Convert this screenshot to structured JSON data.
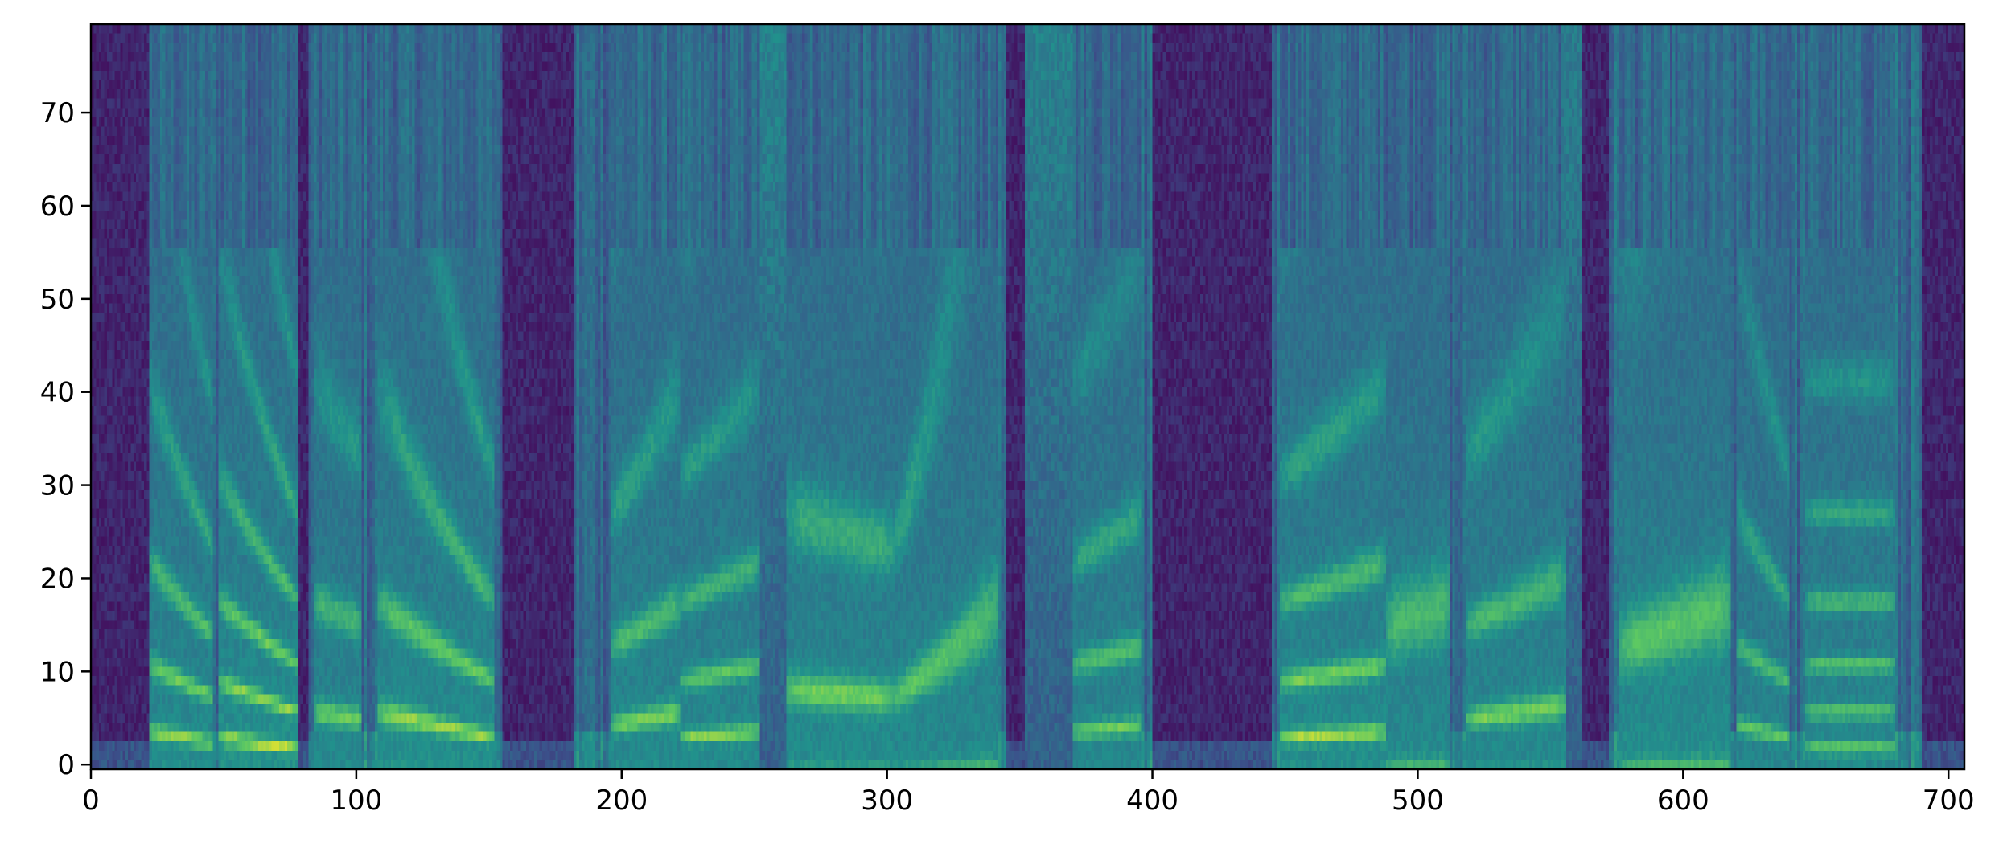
{
  "chart_data": {
    "type": "heatmap",
    "title": "",
    "xlabel": "",
    "ylabel": "",
    "xlim": [
      0,
      706
    ],
    "ylim": [
      0,
      80
    ],
    "x_ticks": [
      0,
      100,
      200,
      300,
      400,
      500,
      600,
      700
    ],
    "y_ticks": [
      0,
      10,
      20,
      30,
      40,
      50,
      60,
      70
    ],
    "x_tick_labels": [
      "0",
      "100",
      "200",
      "300",
      "400",
      "500",
      "600",
      "700"
    ],
    "y_tick_labels": [
      "0",
      "10",
      "20",
      "30",
      "40",
      "50",
      "60",
      "70"
    ],
    "colormap": "viridis",
    "colormap_stops": [
      "#440154",
      "#3b528b",
      "#21918c",
      "#5ec962",
      "#fde725"
    ],
    "grid": false,
    "silence_regions": [
      [
        0,
        22
      ],
      [
        78,
        82
      ],
      [
        155,
        182
      ],
      [
        345,
        352
      ],
      [
        400,
        445
      ],
      [
        562,
        572
      ],
      [
        690,
        706
      ]
    ],
    "voiced_segments": [
      {
        "start": 22,
        "end": 46,
        "f0_bin_start": 4.5,
        "f0_bin_end": 3.5,
        "energy": 0.9
      },
      {
        "start": 48,
        "end": 78,
        "f0_bin_start": 4.0,
        "f0_bin_end": 3.0,
        "energy": 1.0
      },
      {
        "start": 84,
        "end": 102,
        "f0_bin_start": 6.0,
        "f0_bin_end": 5.5,
        "energy": 0.8
      },
      {
        "start": 108,
        "end": 152,
        "f0_bin_start": 6.0,
        "f0_bin_end": 4.0,
        "energy": 0.95
      },
      {
        "start": 196,
        "end": 222,
        "f0_bin_start": 5.0,
        "f0_bin_end": 6.0,
        "energy": 0.85
      },
      {
        "start": 222,
        "end": 252,
        "f0_bin_start": 4.0,
        "f0_bin_end": 4.5,
        "energy": 0.85
      },
      {
        "start": 262,
        "end": 302,
        "f0_bin_start": 7.5,
        "f0_bin_end": 7.0,
        "energy": 0.9
      },
      {
        "start": 302,
        "end": 342,
        "f0_bin_start": 7.0,
        "f0_bin_end": 12.0,
        "energy": 0.85
      },
      {
        "start": 370,
        "end": 396,
        "f0_bin_start": 4.5,
        "f0_bin_end": 5.0,
        "energy": 0.8
      },
      {
        "start": 448,
        "end": 488,
        "f0_bin_start": 4.0,
        "f0_bin_end": 4.5,
        "energy": 0.95
      },
      {
        "start": 488,
        "end": 512,
        "f0_bin_start": 11.0,
        "f0_bin_end": 12.0,
        "energy": 0.85
      },
      {
        "start": 518,
        "end": 556,
        "f0_bin_start": 5.5,
        "f0_bin_end": 6.5,
        "energy": 0.85
      },
      {
        "start": 576,
        "end": 618,
        "f0_bin_start": 10.0,
        "f0_bin_end": 12.0,
        "energy": 0.95
      },
      {
        "start": 620,
        "end": 640,
        "f0_bin_start": 5.0,
        "f0_bin_end": 4.0,
        "energy": 0.75
      },
      {
        "start": 646,
        "end": 680,
        "f0_bin_start": 3.0,
        "f0_bin_end": 3.0,
        "energy": 0.85
      }
    ],
    "fricative_segments": [
      {
        "start": 238,
        "end": 262,
        "energy": 0.55
      },
      {
        "start": 352,
        "end": 370,
        "energy": 0.5
      },
      {
        "start": 556,
        "end": 562,
        "energy": 0.45
      }
    ]
  }
}
